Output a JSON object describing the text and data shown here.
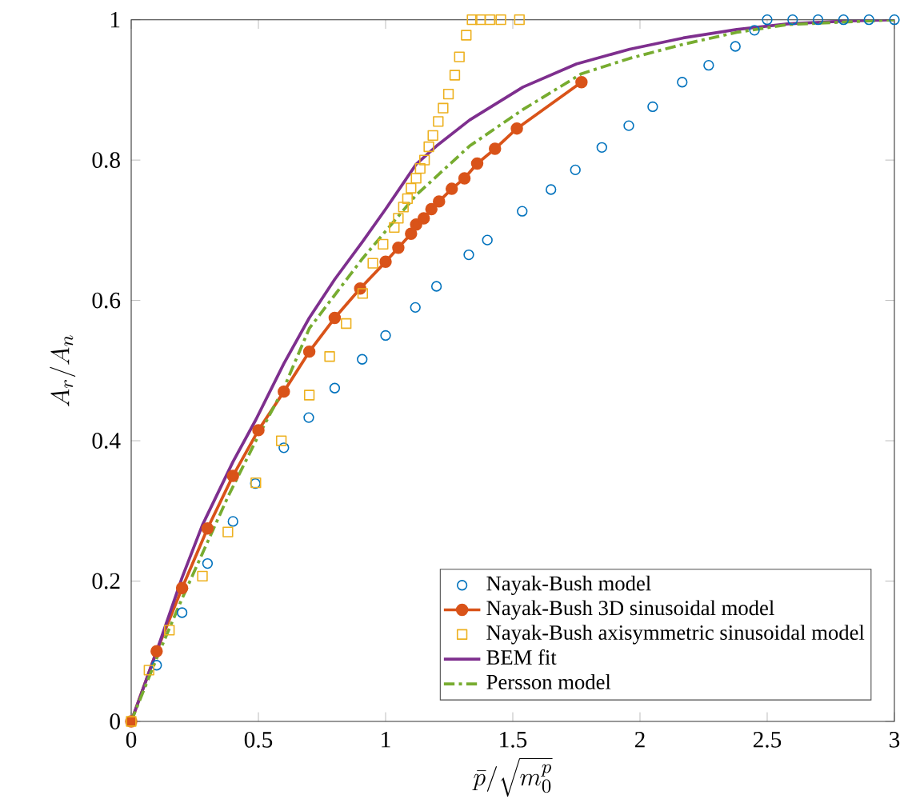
{
  "chart_data": {
    "type": "line",
    "xlabel": "\\bar{p}/\\sqrt{m_0^p}",
    "ylabel": "A_r/A_n",
    "xlim": [
      0,
      3
    ],
    "ylim": [
      0,
      1
    ],
    "xticks": [
      0,
      0.5,
      1,
      1.5,
      2,
      2.5,
      3
    ],
    "yticks": [
      0,
      0.2,
      0.4,
      0.6,
      0.8,
      1
    ],
    "grid": false,
    "legend": "bottom right",
    "series": [
      {
        "name": "Nayak-Bush model",
        "type": "scatter",
        "marker": "circle",
        "color": "#0072bd",
        "x": [
          0.1,
          0.2,
          0.3,
          0.4,
          0.488,
          0.6,
          0.698,
          0.8,
          0.908,
          1.0,
          1.117,
          1.2,
          1.327,
          1.4,
          1.537,
          1.65,
          1.746,
          1.85,
          1.956,
          2.05,
          2.166,
          2.27,
          2.375,
          2.45,
          2.5,
          2.6,
          2.7,
          2.8,
          2.9,
          3
        ],
        "values": [
          0.08,
          0.155,
          0.225,
          0.285,
          0.339,
          0.39,
          0.433,
          0.475,
          0.516,
          0.55,
          0.59,
          0.62,
          0.665,
          0.686,
          0.727,
          0.758,
          0.786,
          0.818,
          0.849,
          0.876,
          0.911,
          0.935,
          0.962,
          0.985,
          1,
          1,
          1,
          1,
          1,
          1
        ]
      },
      {
        "name": "Nayak-Bush 3D sinusoidal model",
        "marker": "circle",
        "line_style": "solid",
        "color": "#d95319",
        "x": [
          0,
          0.1,
          0.2,
          0.3,
          0.4,
          0.5,
          0.6,
          0.7,
          0.8,
          0.9,
          1.0,
          1.05,
          1.1,
          1.12,
          1.15,
          1.18,
          1.21,
          1.26,
          1.31,
          1.36,
          1.43,
          1.516,
          1.77
        ],
        "values": [
          0,
          0.1,
          0.19,
          0.275,
          0.35,
          0.415,
          0.47,
          0.527,
          0.575,
          0.617,
          0.655,
          0.675,
          0.695,
          0.708,
          0.717,
          0.73,
          0.741,
          0.759,
          0.774,
          0.795,
          0.816,
          0.845,
          0.911
        ]
      },
      {
        "name": "Nayak-Bush axisymmetric sinusoidal model",
        "type": "scatter",
        "marker": "square",
        "color": "#edb120",
        "x": [
          0,
          0.07,
          0.15,
          0.28,
          0.38,
          0.49,
          0.59,
          0.7,
          0.78,
          0.845,
          0.91,
          0.95,
          0.99,
          1.034,
          1.05,
          1.07,
          1.086,
          1.1,
          1.12,
          1.136,
          1.153,
          1.17,
          1.186,
          1.207,
          1.226,
          1.247,
          1.272,
          1.29,
          1.317,
          1.34,
          1.373,
          1.41,
          1.453,
          1.526
        ],
        "values": [
          0,
          0.073,
          0.13,
          0.207,
          0.27,
          0.34,
          0.4,
          0.465,
          0.52,
          0.567,
          0.61,
          0.653,
          0.68,
          0.704,
          0.717,
          0.733,
          0.745,
          0.76,
          0.774,
          0.788,
          0.8,
          0.819,
          0.835,
          0.855,
          0.874,
          0.894,
          0.921,
          0.947,
          0.978,
          1,
          1,
          1,
          1,
          1
        ]
      },
      {
        "name": "BEM fit",
        "marker": "none",
        "line_style": "solid",
        "color": "#7e2f8e",
        "x": [
          0,
          0.1,
          0.2,
          0.28,
          0.4,
          0.49,
          0.6,
          0.7,
          0.8,
          0.91,
          1.0,
          1.12,
          1.2,
          1.33,
          1.54,
          1.75,
          1.96,
          2.17,
          2.38,
          2.58,
          2.8,
          3
        ],
        "values": [
          0,
          0.1,
          0.205,
          0.28,
          0.37,
          0.43,
          0.51,
          0.575,
          0.63,
          0.684,
          0.73,
          0.794,
          0.82,
          0.857,
          0.904,
          0.937,
          0.958,
          0.974,
          0.986,
          0.994,
          0.998,
          1
        ]
      },
      {
        "name": "Persson model",
        "marker": "none",
        "line_style": "dashdot",
        "color": "#77ac30",
        "x": [
          0,
          0.1,
          0.2,
          0.38,
          0.49,
          0.6,
          0.7,
          0.91,
          1.12,
          1.33,
          1.54,
          1.77,
          1.96,
          2.17,
          2.38,
          2.58,
          3
        ],
        "values": [
          0,
          0.09,
          0.175,
          0.32,
          0.4,
          0.475,
          0.56,
          0.66,
          0.75,
          0.82,
          0.872,
          0.923,
          0.945,
          0.965,
          0.982,
          0.993,
          1
        ]
      }
    ]
  }
}
